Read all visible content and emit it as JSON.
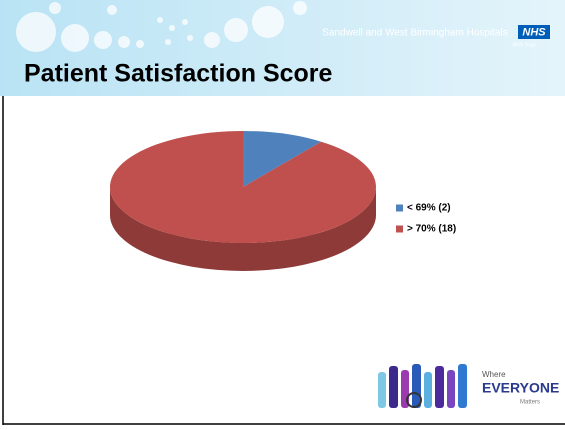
{
  "header": {
    "organisation": "Sandwell and West Birmingham Hospitals",
    "badge": "NHS",
    "trust": "NHS Trust"
  },
  "footer": {
    "line1": "Where",
    "line2": "EVERYONE",
    "line3": "Matters"
  },
  "chart_data": {
    "type": "pie",
    "title": "Patient Satisfaction Score",
    "categories": [
      "< 69% (2)",
      "> 70% (18)"
    ],
    "values": [
      2,
      18
    ],
    "colors": [
      "#4f81bd",
      "#c0504d"
    ],
    "side_colors": [
      "#3a5f8c",
      "#8e3a38"
    ],
    "legend": "right"
  }
}
